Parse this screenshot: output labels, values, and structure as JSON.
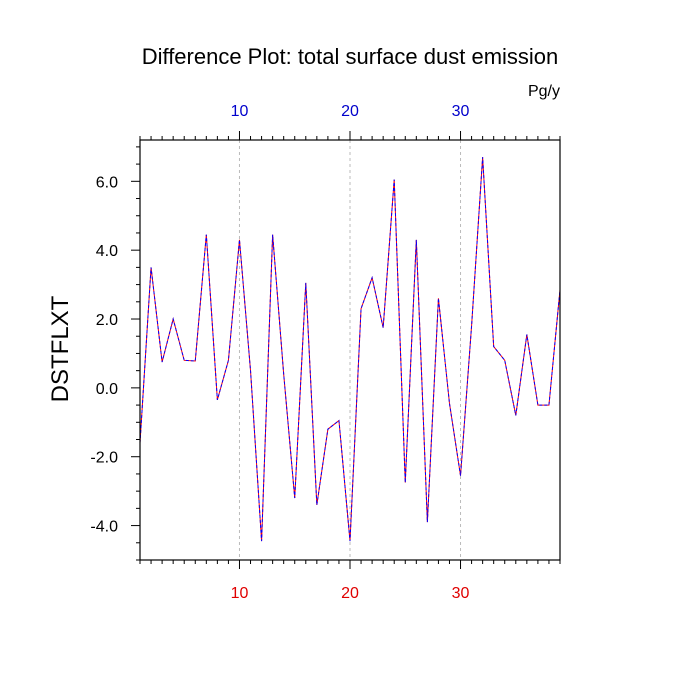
{
  "chart_data": {
    "type": "line",
    "title": "Difference Plot: total surface dust emission",
    "units": "Pg/y",
    "ylabel": "DSTFLXT",
    "xlabel": "",
    "xlim": [
      1,
      39
    ],
    "ylim": [
      -5,
      7.2
    ],
    "x_major_ticks": [
      10,
      20,
      30
    ],
    "x_tick_labels_bottom": [
      "10",
      "20",
      "30"
    ],
    "x_tick_labels_top": [
      "10",
      "20",
      "30"
    ],
    "y_major_ticks": [
      -4,
      -2,
      0,
      2,
      4,
      6
    ],
    "y_tick_labels": [
      "-4.0",
      "-2.0",
      "0.0",
      "2.0",
      "4.0",
      "6.0"
    ],
    "grid": "vertical dashed at major x ticks",
    "colors": {
      "series_a": "#ff0000",
      "series_b": "#0000ff",
      "bottom_ticks": "#e00000",
      "top_ticks": "#0000cc"
    },
    "series": [
      {
        "x": [
          1,
          2,
          3,
          4,
          5,
          6,
          7,
          8,
          9,
          10,
          11,
          12,
          13,
          14,
          15,
          16,
          17,
          18,
          19,
          20,
          21,
          22,
          23,
          24,
          25,
          26,
          27,
          28,
          29,
          30,
          31,
          32,
          33,
          34,
          35,
          36,
          37,
          38,
          39
        ],
        "values": [
          -1.6,
          3.5,
          0.75,
          2.0,
          0.8,
          0.78,
          4.45,
          -0.35,
          0.8,
          4.3,
          0.5,
          -4.45,
          4.45,
          0.4,
          -3.2,
          3.05,
          -3.4,
          -1.2,
          -0.95,
          -4.45,
          2.3,
          3.2,
          1.75,
          6.05,
          -2.75,
          4.3,
          -3.9,
          2.6,
          -0.45,
          -2.55,
          1.8,
          6.7,
          1.2,
          0.8,
          -0.8,
          1.55,
          -0.5,
          -0.5,
          2.85
        ]
      },
      {
        "x": [
          1,
          2,
          3,
          4,
          5,
          6,
          7,
          8,
          9,
          10,
          11,
          12,
          13,
          14,
          15,
          16,
          17,
          18,
          19,
          20,
          21,
          22,
          23,
          24,
          25,
          26,
          27,
          28,
          29,
          30,
          31,
          32,
          33,
          34,
          35,
          36,
          37,
          38,
          39
        ],
        "values": [
          -1.6,
          3.5,
          0.75,
          2.0,
          0.8,
          0.78,
          4.45,
          -0.35,
          0.8,
          4.3,
          0.5,
          -4.45,
          4.45,
          0.4,
          -3.2,
          3.05,
          -3.4,
          -1.2,
          -0.95,
          -4.45,
          2.3,
          3.2,
          1.75,
          6.05,
          -2.75,
          4.3,
          -3.9,
          2.6,
          -0.45,
          -2.55,
          1.8,
          6.7,
          1.2,
          0.8,
          -0.8,
          1.55,
          -0.5,
          -0.5,
          2.85
        ]
      }
    ]
  }
}
